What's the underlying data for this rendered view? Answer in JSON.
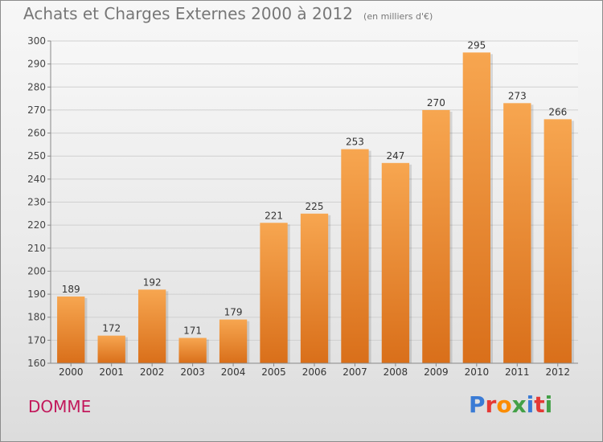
{
  "header": {
    "title": "Achats et Charges Externes 2000 à 2012",
    "subtitle": "(en milliers d'€)"
  },
  "footer": {
    "commune": "DOMME",
    "logo_text": "Proxiti",
    "logo_colors": [
      "#3a7bd5",
      "#e53935",
      "#fb8c00",
      "#43a047",
      "#3a7bd5",
      "#e53935",
      "#43a047"
    ]
  },
  "chart_data": {
    "type": "bar",
    "categories": [
      "2000",
      "2001",
      "2002",
      "2003",
      "2004",
      "2005",
      "2006",
      "2007",
      "2008",
      "2009",
      "2010",
      "2011",
      "2012"
    ],
    "values": [
      189,
      172,
      192,
      171,
      179,
      221,
      225,
      253,
      247,
      270,
      295,
      273,
      266
    ],
    "ylim": [
      160,
      300
    ],
    "yticks": [
      160,
      170,
      180,
      190,
      200,
      210,
      220,
      230,
      240,
      250,
      260,
      270,
      280,
      290,
      300
    ],
    "grid": true,
    "bar_color_top": "#f7a650",
    "bar_color_bottom": "#d96f1a"
  }
}
